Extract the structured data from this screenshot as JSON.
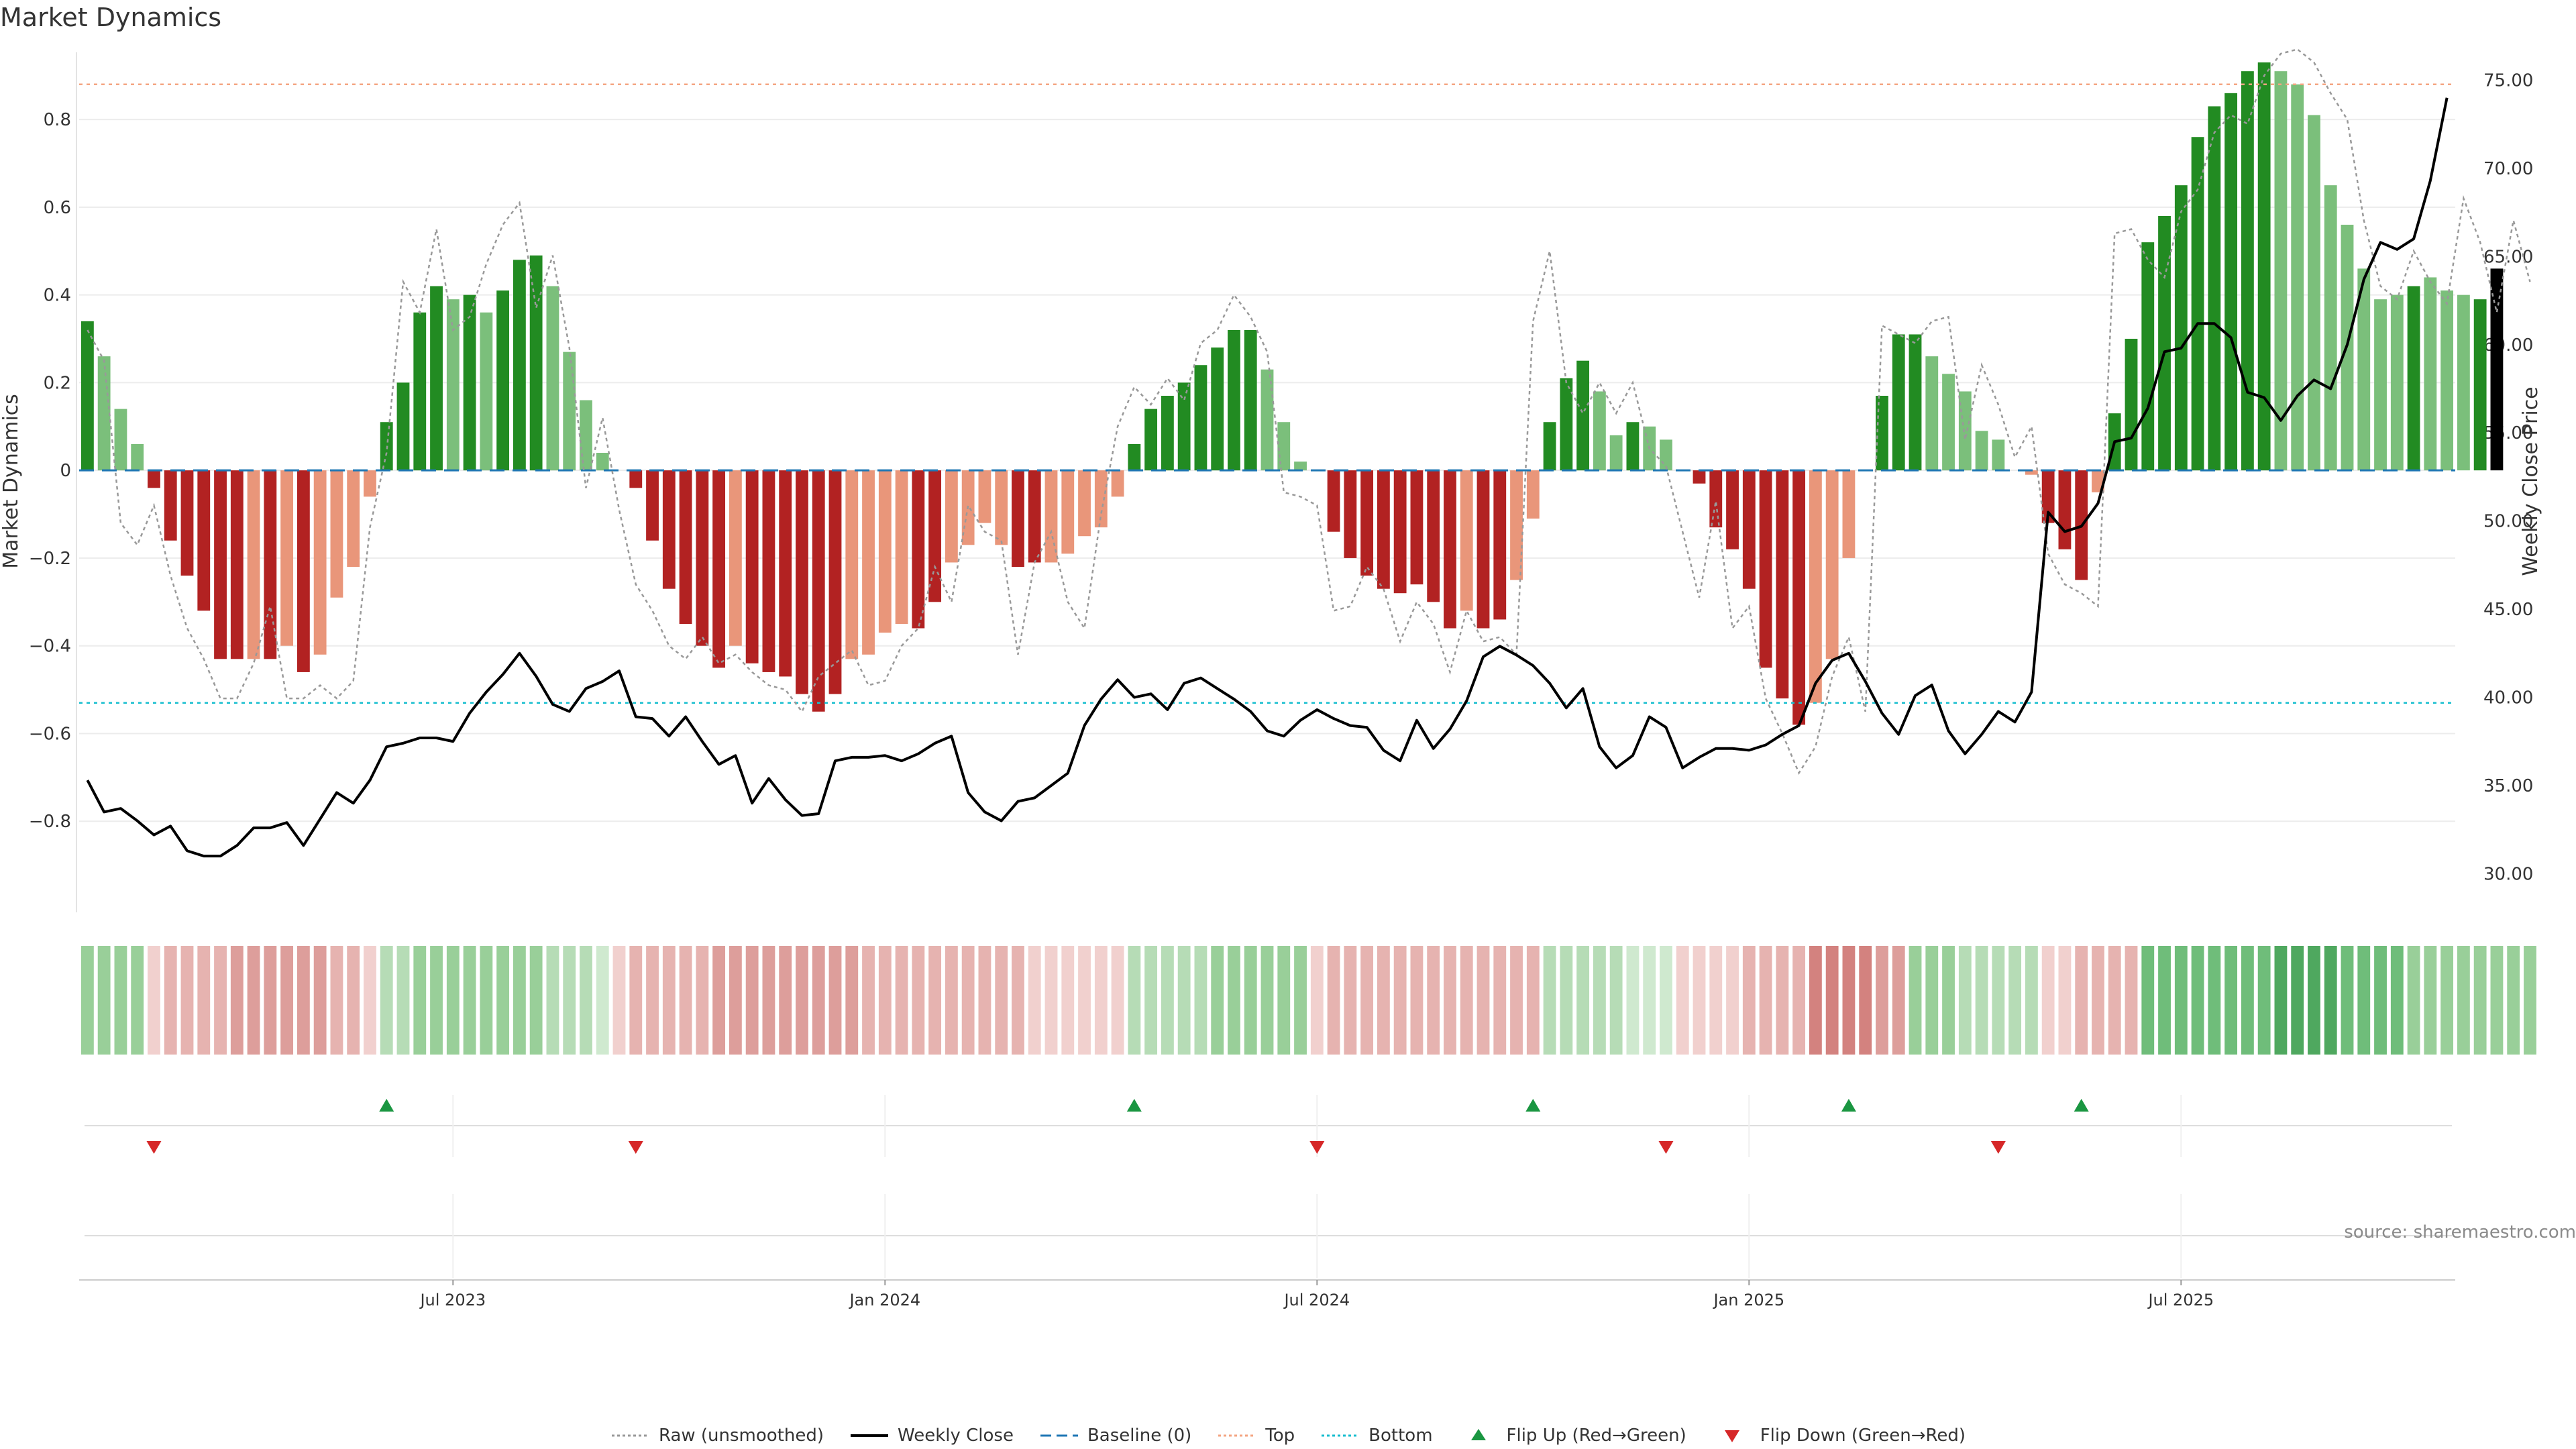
{
  "title": "Market Dynamics",
  "source": "source: sharemaestro.com",
  "colors": {
    "strong_green": "#228B22",
    "light_green": "#7BBF7B",
    "strong_red": "#B22222",
    "light_red": "#E9967A",
    "raw": "#999999",
    "close": "#000000",
    "baseline": "#1f77b4",
    "top": "#f4a582",
    "bottom": "#17becf",
    "flip_up": "#1a9641",
    "flip_down": "#d62728"
  },
  "legend": [
    {
      "key": "raw",
      "label": "Raw (unsmoothed)"
    },
    {
      "key": "close",
      "label": "Weekly Close"
    },
    {
      "key": "baseline",
      "label": "Baseline (0)"
    },
    {
      "key": "top",
      "label": "Top"
    },
    {
      "key": "bottom",
      "label": "Bottom"
    },
    {
      "key": "flip_up",
      "label": "Flip Up (Red→Green)"
    },
    {
      "key": "flip_down",
      "label": "Flip Down (Green→Red)"
    }
  ],
  "chart_data": {
    "type": "bar",
    "title": "Market Dynamics",
    "weeks": 143,
    "ylabel": "Market Dynamics",
    "ylim": [
      -1.0,
      0.95
    ],
    "y_ticks": [
      0.8,
      0.6,
      0.4,
      0.2,
      0,
      -0.2,
      -0.4,
      -0.6,
      -0.8
    ],
    "y_tick_labels": [
      "0.8",
      "0.6",
      "0.4",
      "0.2",
      "0",
      "−0.2",
      "−0.4",
      "−0.6",
      "−0.8"
    ],
    "y2label": "Weekly Close Price",
    "y2lim": [
      28.0,
      76.5
    ],
    "y2_ticks": [
      75,
      70,
      65,
      60,
      55,
      50,
      45,
      40,
      35,
      30
    ],
    "y2_tick_labels": [
      "75.00",
      "70.00",
      "65.00",
      "60.00",
      "55.00",
      "50.00",
      "45.00",
      "40.00",
      "35.00",
      "30.00"
    ],
    "x_ticks": [
      {
        "index": 22,
        "label": "Jul 2023"
      },
      {
        "index": 48,
        "label": "Jan 2024"
      },
      {
        "index": 74,
        "label": "Jul 2024"
      },
      {
        "index": 100,
        "label": "Jan 2025"
      },
      {
        "index": 126,
        "label": "Jul 2025"
      }
    ],
    "top_line": 0.88,
    "bottom_line": -0.53,
    "baseline": 0,
    "series": [
      {
        "name": "Market Dynamics",
        "values": [
          0.34,
          0.26,
          0.14,
          0.06,
          -0.04,
          -0.16,
          -0.24,
          -0.32,
          -0.43,
          -0.43,
          -0.43,
          -0.43,
          -0.4,
          -0.46,
          -0.42,
          -0.29,
          -0.22,
          -0.06,
          0.11,
          0.2,
          0.36,
          0.42,
          0.39,
          0.4,
          0.36,
          0.41,
          0.48,
          0.49,
          0.42,
          0.27,
          0.16,
          0.04,
          0.0,
          -0.04,
          -0.16,
          -0.27,
          -0.35,
          -0.4,
          -0.45,
          -0.4,
          -0.44,
          -0.46,
          -0.47,
          -0.51,
          -0.55,
          -0.51,
          -0.43,
          -0.42,
          -0.37,
          -0.35,
          -0.36,
          -0.3,
          -0.21,
          -0.17,
          -0.12,
          -0.17,
          -0.22,
          -0.21,
          -0.21,
          -0.19,
          -0.15,
          -0.13,
          -0.06,
          0.06,
          0.14,
          0.17,
          0.2,
          0.24,
          0.28,
          0.32,
          0.32,
          0.23,
          0.11,
          0.02,
          0.0,
          -0.14,
          -0.2,
          -0.24,
          -0.27,
          -0.28,
          -0.26,
          -0.3,
          -0.36,
          -0.32,
          -0.36,
          -0.34,
          -0.25,
          -0.11,
          0.11,
          0.21,
          0.25,
          0.18,
          0.08,
          0.11,
          0.1,
          0.07,
          0.0,
          -0.03,
          -0.13,
          -0.18,
          -0.27,
          -0.45,
          -0.52,
          -0.58,
          -0.53,
          -0.43,
          -0.2,
          0.0,
          0.17,
          0.31,
          0.31,
          0.26,
          0.22,
          0.18,
          0.09,
          0.07,
          0.0,
          -0.01,
          -0.12,
          -0.18,
          -0.25,
          -0.05,
          0.13,
          0.3,
          0.52,
          0.58,
          0.65,
          0.76,
          0.83,
          0.86,
          0.91,
          0.93,
          0.91,
          0.88,
          0.81,
          0.65,
          0.56,
          0.46,
          0.39,
          0.4,
          0.42,
          0.44,
          0.41,
          0.4,
          0.39,
          0.46
        ]
      },
      {
        "name": "Bar Color",
        "values": [
          "G",
          "L",
          "L",
          "L",
          "R",
          "R",
          "R",
          "R",
          "R",
          "R",
          "P",
          "R",
          "P",
          "R",
          "P",
          "P",
          "P",
          "P",
          "G",
          "G",
          "G",
          "G",
          "L",
          "G",
          "L",
          "G",
          "G",
          "G",
          "L",
          "L",
          "L",
          "L",
          "N",
          "R",
          "R",
          "R",
          "R",
          "R",
          "R",
          "P",
          "R",
          "R",
          "R",
          "R",
          "R",
          "R",
          "P",
          "P",
          "P",
          "P",
          "R",
          "R",
          "P",
          "P",
          "P",
          "P",
          "R",
          "R",
          "P",
          "P",
          "P",
          "P",
          "P",
          "G",
          "G",
          "G",
          "G",
          "G",
          "G",
          "G",
          "G",
          "L",
          "L",
          "L",
          "N",
          "R",
          "R",
          "R",
          "R",
          "R",
          "R",
          "R",
          "R",
          "P",
          "R",
          "R",
          "P",
          "P",
          "G",
          "G",
          "G",
          "L",
          "L",
          "G",
          "L",
          "L",
          "N",
          "R",
          "R",
          "R",
          "R",
          "R",
          "R",
          "R",
          "P",
          "P",
          "P",
          "N",
          "G",
          "G",
          "G",
          "L",
          "L",
          "L",
          "L",
          "L",
          "N",
          "P",
          "R",
          "R",
          "R",
          "P",
          "G",
          "G",
          "G",
          "G",
          "G",
          "G",
          "G",
          "G",
          "G",
          "G",
          "L",
          "L",
          "L",
          "L",
          "L",
          "L",
          "L",
          "L",
          "G",
          "L",
          "L",
          "L",
          "G"
        ]
      },
      {
        "name": "Raw (unsmoothed)",
        "values": [
          0.32,
          0.25,
          -0.12,
          -0.17,
          -0.08,
          -0.24,
          -0.36,
          -0.43,
          -0.52,
          -0.52,
          -0.44,
          -0.31,
          -0.52,
          -0.52,
          -0.49,
          -0.52,
          -0.48,
          -0.13,
          0.04,
          0.43,
          0.36,
          0.55,
          0.32,
          0.35,
          0.47,
          0.56,
          0.61,
          0.37,
          0.49,
          0.28,
          -0.04,
          0.12,
          -0.09,
          -0.26,
          -0.32,
          -0.4,
          -0.43,
          -0.38,
          -0.44,
          -0.42,
          -0.46,
          -0.49,
          -0.5,
          -0.55,
          -0.47,
          -0.44,
          -0.41,
          -0.49,
          -0.48,
          -0.4,
          -0.36,
          -0.22,
          -0.3,
          -0.08,
          -0.14,
          -0.16,
          -0.42,
          -0.21,
          -0.14,
          -0.3,
          -0.36,
          -0.1,
          0.1,
          0.19,
          0.15,
          0.21,
          0.16,
          0.29,
          0.32,
          0.4,
          0.35,
          0.27,
          -0.05,
          -0.06,
          -0.08,
          -0.32,
          -0.31,
          -0.22,
          -0.27,
          -0.39,
          -0.3,
          -0.35,
          -0.46,
          -0.32,
          -0.39,
          -0.38,
          -0.42,
          0.34,
          0.5,
          0.2,
          0.13,
          0.2,
          0.13,
          0.2,
          0.05,
          0.01,
          -0.14,
          -0.29,
          -0.07,
          -0.36,
          -0.31,
          -0.52,
          -0.6,
          -0.69,
          -0.63,
          -0.47,
          -0.38,
          -0.55,
          0.33,
          0.31,
          0.29,
          0.34,
          0.35,
          0.07,
          0.24,
          0.15,
          0.03,
          0.1,
          -0.19,
          -0.26,
          -0.28,
          -0.31,
          0.54,
          0.55,
          0.48,
          0.44,
          0.59,
          0.64,
          0.77,
          0.81,
          0.79,
          0.9,
          0.95,
          0.96,
          0.93,
          0.86,
          0.8,
          0.57,
          0.42,
          0.39,
          0.5,
          0.43,
          0.38,
          0.62,
          0.52,
          0.36,
          0.57,
          0.43
        ]
      },
      {
        "name": "Weekly Close",
        "values": [
          35.3,
          33.5,
          33.7,
          33.0,
          32.2,
          32.7,
          31.3,
          31.0,
          31.0,
          31.6,
          32.6,
          32.6,
          32.9,
          31.6,
          33.1,
          34.6,
          34.0,
          35.3,
          37.2,
          37.4,
          37.7,
          37.7,
          37.5,
          39.1,
          40.3,
          41.3,
          42.5,
          41.2,
          39.6,
          39.2,
          40.5,
          40.9,
          41.5,
          38.9,
          38.8,
          37.8,
          38.9,
          37.5,
          36.2,
          36.7,
          34.0,
          35.4,
          34.2,
          33.3,
          33.4,
          36.4,
          36.6,
          36.6,
          36.7,
          36.4,
          36.8,
          37.4,
          37.8,
          34.6,
          33.5,
          33.0,
          34.1,
          34.3,
          35.0,
          35.7,
          38.4,
          39.9,
          41.0,
          40.0,
          40.2,
          39.3,
          40.8,
          41.1,
          40.5,
          39.9,
          39.2,
          38.1,
          37.8,
          38.7,
          39.3,
          38.8,
          38.4,
          38.3,
          37.0,
          36.4,
          38.7,
          37.1,
          38.2,
          39.8,
          42.3,
          42.9,
          42.4,
          41.8,
          40.8,
          39.4,
          40.5,
          37.2,
          36.0,
          36.7,
          38.9,
          38.3,
          36.0,
          36.6,
          37.1,
          37.1,
          37.0,
          37.3,
          37.9,
          38.4,
          40.8,
          42.1,
          42.5,
          40.9,
          39.1,
          37.9,
          40.1,
          40.7,
          38.1,
          36.8,
          37.9,
          39.2,
          38.6,
          40.3,
          50.5,
          49.4,
          49.7,
          51.0,
          54.5,
          54.7,
          56.4,
          59.6,
          59.8,
          61.2,
          61.2,
          60.4,
          57.3,
          57.0,
          55.7,
          57.1,
          58.0,
          57.5,
          60.0,
          63.7,
          65.8,
          65.4,
          66.0,
          69.3,
          74.0
        ]
      }
    ],
    "strip_levels": [
      "g3",
      "g3",
      "g3",
      "g3",
      "r1",
      "r2",
      "r2",
      "r2",
      "r2",
      "r3",
      "r3",
      "r3",
      "r3",
      "r3",
      "r3",
      "r2",
      "r2",
      "r1",
      "g2",
      "g2",
      "g3",
      "g3",
      "g3",
      "g3",
      "g3",
      "g3",
      "g3",
      "g3",
      "g2",
      "g2",
      "g2",
      "g1",
      "r1",
      "r2",
      "r2",
      "r2",
      "r2",
      "r2",
      "r3",
      "r3",
      "r3",
      "r3",
      "r3",
      "r3",
      "r3",
      "r3",
      "r3",
      "r2",
      "r2",
      "r2",
      "r2",
      "r2",
      "r2",
      "r2",
      "r2",
      "r2",
      "r2",
      "r1",
      "r1",
      "r1",
      "r1",
      "r1",
      "r1",
      "g2",
      "g2",
      "g2",
      "g2",
      "g2",
      "g3",
      "g3",
      "g3",
      "g3",
      "g3",
      "g3",
      "r1",
      "r2",
      "r2",
      "r2",
      "r2",
      "r2",
      "r2",
      "r2",
      "r2",
      "r2",
      "r2",
      "r2",
      "r2",
      "r2",
      "g2",
      "g2",
      "g2",
      "g2",
      "g2",
      "g1",
      "g1",
      "g1",
      "r1",
      "r1",
      "r1",
      "r1",
      "r2",
      "r2",
      "r2",
      "r2",
      "r4",
      "r4",
      "r4",
      "r4",
      "r3",
      "r3",
      "g3",
      "g3",
      "g3",
      "g2",
      "g2",
      "g2",
      "g2",
      "g2",
      "r1",
      "r1",
      "r2",
      "r2",
      "r2",
      "r2",
      "g4",
      "g4",
      "g4",
      "g4",
      "g4",
      "g4",
      "g4",
      "g4",
      "g5",
      "g5",
      "g5",
      "g5",
      "g4",
      "g4",
      "g4",
      "g4",
      "g3",
      "g3",
      "g3",
      "g3",
      "g3",
      "g3",
      "g3",
      "g3"
    ],
    "flips_up": [
      18,
      63,
      87,
      106,
      120
    ],
    "flips_down": [
      4,
      33,
      74,
      95,
      115
    ]
  }
}
